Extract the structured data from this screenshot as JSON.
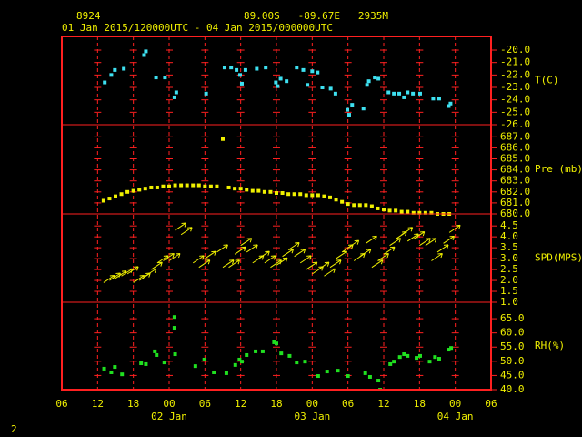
{
  "header": {
    "station": "8924",
    "location": "89.00S   -89.67E   2935M",
    "period": "01 Jan 2015/120000UTC - 04 Jan 2015/000000UTC",
    "page_number": "2"
  },
  "chart_data": [
    {
      "type": "scatter",
      "y_label": "T(C)",
      "color": "#3ee0f0",
      "ylim": [
        -26,
        -18.9
      ],
      "yticks": [
        {
          "value": -20,
          "label": "-20.0"
        },
        {
          "value": -21,
          "label": "-21.0"
        },
        {
          "value": -22,
          "label": "-22.0"
        },
        {
          "value": -23,
          "label": "-23.0"
        },
        {
          "value": -24,
          "label": "-24.0"
        },
        {
          "value": -25,
          "label": "-25.0"
        },
        {
          "value": -26,
          "label": "-26.0"
        }
      ],
      "x": [
        7.2,
        8.3,
        8.9,
        10.4,
        13.8,
        14.1,
        15.8,
        17.3,
        18.9,
        19.2,
        24.2,
        27.3,
        28.4,
        29.3,
        29.9,
        30.2,
        30.8,
        32.7,
        34.2,
        35.9,
        36.2,
        36.7,
        37.7,
        39.4,
        40.5,
        41.2,
        42.0,
        42.9,
        43.7,
        45.1,
        45.9,
        47.9,
        48.2,
        48.7,
        50.6,
        51.2,
        51.5,
        52.5,
        53.1,
        54.8,
        55.7,
        56.6,
        57.4,
        58.0,
        58.9,
        60.1,
        62.3,
        63.3,
        64.9,
        65.2
      ],
      "values": [
        -22.6,
        -22.0,
        -21.6,
        -21.5,
        -20.4,
        -20.1,
        -22.2,
        -22.2,
        -23.8,
        -23.4,
        -23.5,
        -21.4,
        -21.4,
        -21.6,
        -22.0,
        -22.7,
        -21.6,
        -21.5,
        -21.4,
        -22.6,
        -22.9,
        -22.3,
        -22.5,
        -21.4,
        -21.6,
        -22.8,
        -21.7,
        -21.8,
        -23.0,
        -23.1,
        -23.5,
        -24.8,
        -25.2,
        -24.4,
        -24.7,
        -22.8,
        -22.5,
        -22.2,
        -22.3,
        -23.4,
        -23.5,
        -23.5,
        -23.8,
        -23.4,
        -23.5,
        -23.5,
        -23.9,
        -23.9,
        -24.5,
        -24.3
      ]
    },
    {
      "type": "scatter",
      "y_label": "Pre (mb)",
      "color": "#f0f000",
      "ylim": [
        680,
        688.1
      ],
      "yticks": [
        {
          "value": 680,
          "label": "680.0"
        },
        {
          "value": 681,
          "label": "681.0"
        },
        {
          "value": 682,
          "label": "682.0"
        },
        {
          "value": 683,
          "label": "683.0"
        },
        {
          "value": 684,
          "label": "684.0"
        },
        {
          "value": 685,
          "label": "685.0"
        },
        {
          "value": 686,
          "label": "686.0"
        },
        {
          "value": 687,
          "label": "687.0"
        }
      ],
      "x": [
        7,
        8,
        9,
        10,
        11,
        12,
        13,
        14,
        15,
        16,
        17,
        18,
        19,
        20,
        21,
        22,
        23,
        24,
        25,
        26,
        27,
        28,
        29,
        30,
        31,
        32,
        33,
        34,
        35,
        36,
        37,
        38,
        39,
        40,
        41,
        42,
        43,
        44,
        45,
        46,
        47,
        48,
        49,
        50,
        51,
        52,
        53,
        54,
        55,
        56,
        57,
        58,
        59,
        60,
        61,
        62,
        63,
        64,
        65
      ],
      "values": [
        681.2,
        681.4,
        681.6,
        681.8,
        682.0,
        682.1,
        682.2,
        682.3,
        682.4,
        682.4,
        682.5,
        682.5,
        682.6,
        682.6,
        682.6,
        682.6,
        682.6,
        682.5,
        682.5,
        682.5,
        686.8,
        682.4,
        682.3,
        682.3,
        682.2,
        682.1,
        682.1,
        682.0,
        682.0,
        681.9,
        681.9,
        681.8,
        681.8,
        681.8,
        681.7,
        681.7,
        681.7,
        681.6,
        681.5,
        681.3,
        681.1,
        680.9,
        680.8,
        680.8,
        680.8,
        680.7,
        680.5,
        680.4,
        680.3,
        680.3,
        680.2,
        680.2,
        680.1,
        680.1,
        680.1,
        680.1,
        680.0,
        680.0,
        680.0
      ]
    },
    {
      "type": "vector",
      "y_label": "SPD(MPS)",
      "color": "#f0f000",
      "ylim": [
        1,
        5.05
      ],
      "yticks": [
        {
          "value": 1,
          "label": "1.0"
        },
        {
          "value": 1.5,
          "label": "1.5"
        },
        {
          "value": 2,
          "label": "2.0"
        },
        {
          "value": 2.5,
          "label": "2.5"
        },
        {
          "value": 3,
          "label": "3.0"
        },
        {
          "value": 3.5,
          "label": "3.5"
        },
        {
          "value": 4,
          "label": "4.0"
        },
        {
          "value": 4.5,
          "label": "4.5"
        }
      ],
      "x": [
        7,
        8,
        9,
        10,
        11,
        12,
        13,
        14,
        15,
        16,
        17,
        18,
        19,
        20,
        22,
        23,
        24,
        26,
        27,
        28,
        29,
        30,
        31,
        32,
        33,
        34,
        35,
        36,
        37,
        38,
        39,
        40,
        41,
        42,
        43,
        44,
        45,
        46,
        47,
        48,
        49,
        50,
        51,
        52,
        53,
        54,
        55,
        56,
        57,
        58,
        59,
        60,
        61,
        62,
        63,
        64,
        65
      ],
      "values": [
        1.9,
        2.0,
        2.1,
        2.2,
        2.3,
        1.9,
        2.0,
        2.2,
        2.5,
        2.8,
        2.9,
        2.9,
        4.3,
        4.1,
        2.8,
        2.6,
        3.0,
        3.3,
        2.6,
        2.6,
        3.2,
        3.6,
        3.3,
        2.8,
        3.0,
        2.8,
        2.6,
        2.7,
        3.1,
        3.4,
        3.1,
        2.8,
        2.5,
        2.3,
        2.5,
        2.2,
        2.6,
        3.0,
        3.3,
        3.5,
        2.9,
        3.1,
        3.7,
        2.6,
        2.9,
        3.2,
        3.6,
        3.9,
        4.1,
        3.8,
        3.9,
        3.6,
        3.6,
        2.9,
        3.3,
        3.7,
        4.2
      ]
    },
    {
      "type": "scatter",
      "y_label": "RH(%)",
      "color": "#20e020",
      "ylim": [
        40,
        70.8
      ],
      "yticks": [
        {
          "value": 40,
          "label": "40.0"
        },
        {
          "value": 45,
          "label": "45.0"
        },
        {
          "value": 50,
          "label": "50.0"
        },
        {
          "value": 55,
          "label": "55.0"
        },
        {
          "value": 60,
          "label": "60.0"
        },
        {
          "value": 65,
          "label": "65.0"
        }
      ],
      "x": [
        7.1,
        8.3,
        8.9,
        10.1,
        13.3,
        14.1,
        15.6,
        15.9,
        17.2,
        18.9,
        18.9,
        19.0,
        22.4,
        23.9,
        25.5,
        27.6,
        29.1,
        29.8,
        30.2,
        31.0,
        32.5,
        33.7,
        35.6,
        36.0,
        36.8,
        38.2,
        39.4,
        40.8,
        43.0,
        44.5,
        46.3,
        48.0,
        50.9,
        51.7,
        53.1,
        53.4,
        55.1,
        55.7,
        56.7,
        57.4,
        58.0,
        59.5,
        60.1,
        61.7,
        62.6,
        63.3,
        64.9,
        65.3
      ],
      "values": [
        47.4,
        46.1,
        48.0,
        45.4,
        49.3,
        49.0,
        53.5,
        52.2,
        49.6,
        61.8,
        65.6,
        52.5,
        48.3,
        50.6,
        46.1,
        45.8,
        48.7,
        50.6,
        49.9,
        52.2,
        53.5,
        53.5,
        56.7,
        56.3,
        52.8,
        51.9,
        49.6,
        49.9,
        44.8,
        46.4,
        46.7,
        44.8,
        45.8,
        44.5,
        43.2,
        40.0,
        49.0,
        49.9,
        51.5,
        52.5,
        51.9,
        51.2,
        51.9,
        49.9,
        51.5,
        50.9,
        54.1,
        54.7
      ],
      "xlim": [
        0,
        72
      ],
      "xticks": [
        {
          "value": 0,
          "label": "06"
        },
        {
          "value": 6,
          "label": "12"
        },
        {
          "value": 12,
          "label": "18"
        },
        {
          "value": 18,
          "label": "00"
        },
        {
          "value": 24,
          "label": "06"
        },
        {
          "value": 30,
          "label": "12"
        },
        {
          "value": 36,
          "label": "18"
        },
        {
          "value": 42,
          "label": "00"
        },
        {
          "value": 48,
          "label": "06"
        },
        {
          "value": 54,
          "label": "12"
        },
        {
          "value": 60,
          "label": "18"
        },
        {
          "value": 66,
          "label": "00"
        },
        {
          "value": 72,
          "label": "06"
        }
      ],
      "x_day_labels": [
        {
          "value": 18,
          "label": "02 Jan"
        },
        {
          "value": 42,
          "label": "03 Jan"
        },
        {
          "value": 66,
          "label": "04 Jan"
        }
      ]
    }
  ]
}
